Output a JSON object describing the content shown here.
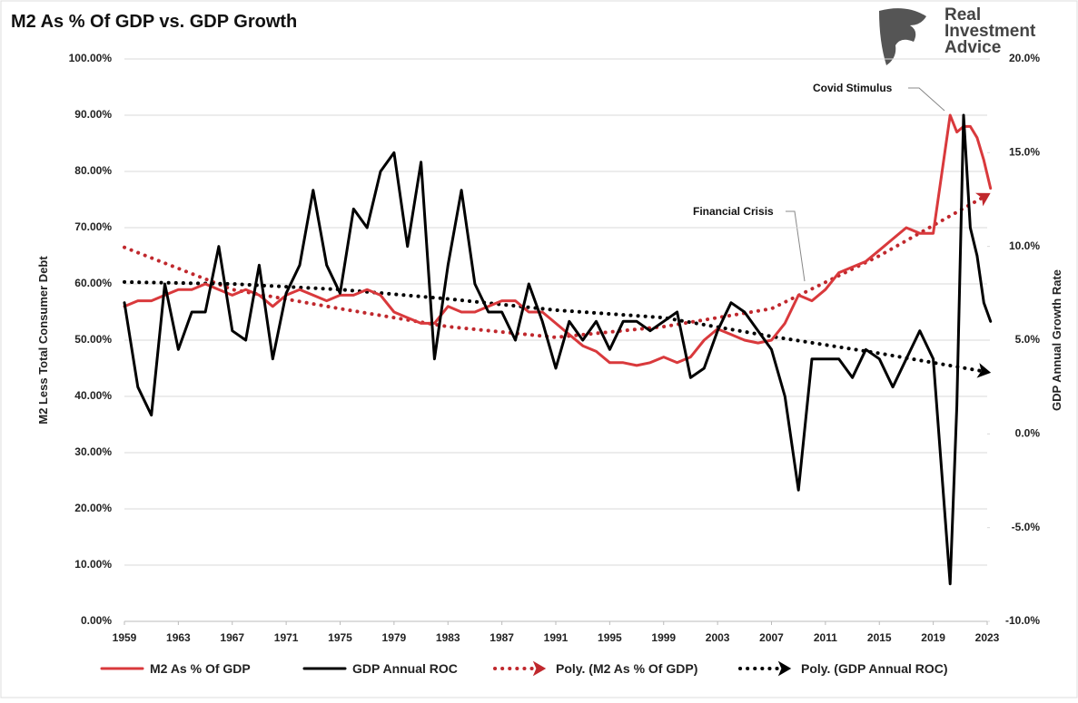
{
  "chart_data": {
    "type": "line",
    "title": "M2 As % Of GDP vs. GDP Growth",
    "logo_lines": [
      "Real",
      "Investment",
      "Advice"
    ],
    "y_label": "M2 Less Total Consumer Debt",
    "y2_label": "GDP Annual Growth Rate",
    "annotations": [
      "Covid Stimulus",
      "Financial Crisis"
    ],
    "grid": true,
    "legend": "bottom",
    "x": [
      1959,
      1960,
      1961,
      1962,
      1963,
      1964,
      1965,
      1966,
      1967,
      1968,
      1969,
      1970,
      1971,
      1972,
      1973,
      1974,
      1975,
      1976,
      1977,
      1978,
      1979,
      1980,
      1981,
      1982,
      1983,
      1984,
      1985,
      1986,
      1987,
      1988,
      1989,
      1990,
      1991,
      1992,
      1993,
      1994,
      1995,
      1996,
      1997,
      1998,
      1999,
      2000,
      2001,
      2002,
      2003,
      2004,
      2005,
      2006,
      2007,
      2008,
      2009,
      2010,
      2011,
      2012,
      2013,
      2014,
      2015,
      2016,
      2017,
      2018,
      2019,
      2020.25,
      2020.75,
      2021.25,
      2021.75,
      2022.25,
      2022.75,
      2023.25
    ],
    "xlim": [
      1959,
      2023
    ],
    "xticks": [
      1959,
      1963,
      1967,
      1971,
      1975,
      1979,
      1983,
      1987,
      1991,
      1995,
      1999,
      2003,
      2007,
      2011,
      2015,
      2019,
      2023
    ],
    "ylim": [
      0,
      100
    ],
    "yticks": [
      {
        "value": 0,
        "label": "0.00%"
      },
      {
        "value": 10,
        "label": "10.00%"
      },
      {
        "value": 20,
        "label": "20.00%"
      },
      {
        "value": 30,
        "label": "30.00%"
      },
      {
        "value": 40,
        "label": "40.00%"
      },
      {
        "value": 50,
        "label": "50.00%"
      },
      {
        "value": 60,
        "label": "60.00%"
      },
      {
        "value": 70,
        "label": "70.00%"
      },
      {
        "value": 80,
        "label": "80.00%"
      },
      {
        "value": 90,
        "label": "90.00%"
      },
      {
        "value": 100,
        "label": "100.00%"
      }
    ],
    "y2lim": [
      -10,
      20
    ],
    "y2ticks": [
      {
        "value": -10,
        "label": "-10.0%"
      },
      {
        "value": -5,
        "label": "-5.0%"
      },
      {
        "value": 0,
        "label": "0.0%"
      },
      {
        "value": 5,
        "label": "5.0%"
      },
      {
        "value": 10,
        "label": "10.0%"
      },
      {
        "value": 15,
        "label": "15.0%"
      },
      {
        "value": 20,
        "label": "20.0%"
      }
    ],
    "series": [
      {
        "name": "M2 As % Of GDP",
        "color": "#d9393c",
        "style": "solid",
        "axis": "y",
        "values": [
          56,
          57,
          57,
          58,
          59,
          59,
          60,
          59,
          58,
          59,
          58,
          56,
          58,
          59,
          58,
          57,
          58,
          58,
          59,
          58,
          55,
          54,
          53,
          53,
          56,
          55,
          55,
          56,
          57,
          57,
          55,
          55,
          53,
          51,
          49,
          48,
          46,
          46,
          45.5,
          46,
          47,
          46,
          47,
          50,
          52,
          51,
          50,
          49.5,
          50,
          53,
          58,
          57,
          59,
          62,
          63,
          64,
          66,
          68,
          70,
          69,
          69,
          90,
          87,
          88,
          88,
          86,
          82,
          77
        ]
      },
      {
        "name": "GDP Annual ROC",
        "color": "#000000",
        "style": "solid",
        "axis": "y2",
        "values": [
          7.0,
          2.5,
          1.0,
          8.0,
          4.5,
          6.5,
          6.5,
          10.0,
          5.5,
          5.0,
          9.0,
          4.0,
          7.5,
          9.0,
          13.0,
          9.0,
          7.5,
          12.0,
          11.0,
          14.0,
          15.0,
          10.0,
          14.5,
          4.0,
          9.0,
          13.0,
          8.0,
          6.5,
          6.5,
          5.0,
          8.0,
          6.0,
          3.5,
          6.0,
          5.0,
          6.0,
          4.5,
          6.0,
          6.0,
          5.5,
          6.0,
          6.5,
          3.0,
          3.5,
          5.5,
          7.0,
          6.5,
          5.5,
          4.5,
          2.0,
          -3.0,
          4.0,
          4.0,
          4.0,
          3.0,
          4.5,
          4.0,
          2.5,
          4.0,
          5.5,
          4.0,
          -8.0,
          1.5,
          17.0,
          11.0,
          9.5,
          7.0,
          6.0
        ]
      },
      {
        "name": "Poly. (M2 As % Of GDP)",
        "color": "#c0282d",
        "style": "dotted",
        "axis": "y",
        "x": [
          1959,
          1967,
          1975,
          1983,
          1991,
          1999,
          2007,
          2015,
          2023
        ],
        "values": [
          66.5,
          59,
          55.6,
          52.4,
          50.5,
          52.4,
          55.6,
          65,
          75.8
        ]
      },
      {
        "name": "Poly. (GDP Annual ROC)",
        "color": "#000000",
        "style": "dotted",
        "axis": "y2",
        "x": [
          1959,
          1967,
          1975,
          1983,
          1991,
          1999,
          2007,
          2015,
          2023
        ],
        "values": [
          8.1,
          8.0,
          7.7,
          7.2,
          6.6,
          6.2,
          5.2,
          4.3,
          3.3
        ]
      }
    ]
  }
}
